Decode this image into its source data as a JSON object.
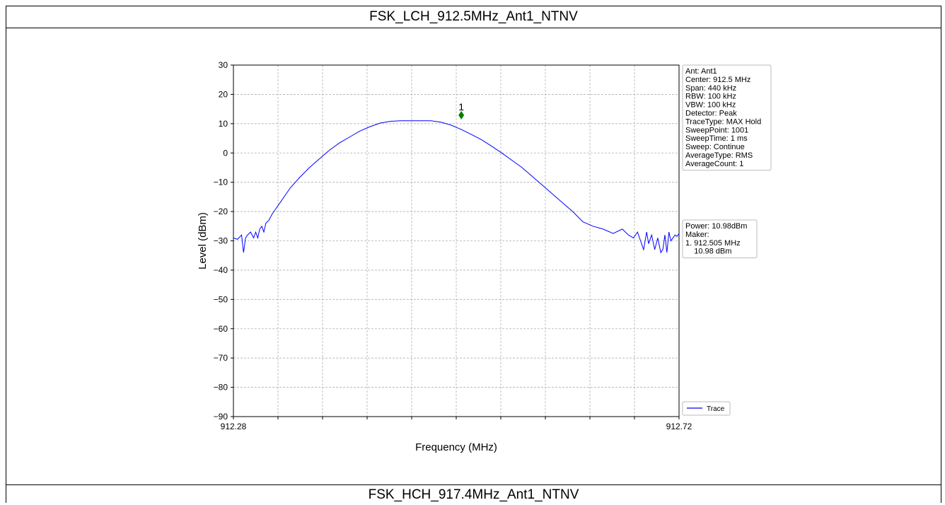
{
  "header": {
    "title_top": "FSK_LCH_912.5MHz_Ant1_NTNV",
    "title_bottom": "FSK_HCH_917.4MHz_Ant1_NTNV"
  },
  "chart_data": {
    "type": "line",
    "xlabel": "Frequency (MHz)",
    "ylabel": "Level (dBm)",
    "xlim": [
      912.28,
      912.72
    ],
    "ylim": [
      -90,
      30
    ],
    "x_tick_labels": [
      "912.28",
      "912.72"
    ],
    "x_minor_ticks": [
      912.28,
      912.324,
      912.368,
      912.412,
      912.456,
      912.5,
      912.544,
      912.588,
      912.632,
      912.676,
      912.72
    ],
    "y_ticks": [
      30,
      20,
      10,
      0,
      -10,
      -20,
      -30,
      -40,
      -50,
      -60,
      -70,
      -80,
      -90
    ],
    "y_tick_labels": [
      "30",
      "20",
      "10",
      "0",
      "−10",
      "−20",
      "−30",
      "−40",
      "−50",
      "−60",
      "−70",
      "−80",
      "−90"
    ],
    "grid": true,
    "legend_position": "bottom-right-outside",
    "series": [
      {
        "name": "Trace",
        "color": "#0000ff",
        "x": [
          912.28,
          912.284,
          912.288,
          912.29,
          912.292,
          912.294,
          912.297,
          912.3,
          912.302,
          912.304,
          912.306,
          912.308,
          912.31,
          912.312,
          912.315,
          912.318,
          912.322,
          912.326,
          912.33,
          912.336,
          912.345,
          912.355,
          912.365,
          912.375,
          912.385,
          912.395,
          912.405,
          912.415,
          912.425,
          912.435,
          912.445,
          912.455,
          912.465,
          912.475,
          912.485,
          912.495,
          912.505,
          912.515,
          912.525,
          912.535,
          912.545,
          912.555,
          912.565,
          912.575,
          912.585,
          912.595,
          912.605,
          912.615,
          912.625,
          912.635,
          912.645,
          912.655,
          912.664,
          912.67,
          912.675,
          912.679,
          912.682,
          912.685,
          912.688,
          912.69,
          912.693,
          912.696,
          912.699,
          912.702,
          912.704,
          912.706,
          912.708,
          912.71,
          912.712,
          912.714,
          912.716,
          912.718,
          912.72
        ],
        "y": [
          -29,
          -29.5,
          -28,
          -34,
          -29,
          -28,
          -27,
          -29,
          -27,
          -29,
          -26,
          -25,
          -27,
          -24,
          -23,
          -21,
          -19,
          -17,
          -15,
          -12,
          -8.5,
          -5,
          -2,
          1,
          3.5,
          5.5,
          7.5,
          9,
          10.2,
          10.8,
          11,
          11,
          11,
          11,
          10.5,
          9.5,
          8,
          6.3,
          4.5,
          2.3,
          0,
          -2.5,
          -5,
          -8,
          -11,
          -14,
          -17,
          -20,
          -23.5,
          -25,
          -26,
          -27.5,
          -26,
          -28,
          -29,
          -27,
          -30,
          -33,
          -27,
          -31,
          -28,
          -33,
          -29,
          -34,
          -33,
          -28,
          -34,
          -27,
          -30,
          -29,
          -28,
          -28.5,
          -27.5
        ]
      }
    ],
    "marker": {
      "label": "1",
      "x": 912.505,
      "y": 12.9,
      "color": "#008000"
    }
  },
  "info_box": {
    "lines": [
      "Ant: Ant1",
      "Center: 912.5 MHz",
      "Span: 440 kHz",
      "RBW: 100 kHz",
      "VBW: 100 kHz",
      "Detector: Peak",
      "TraceType: MAX Hold",
      "SweepPoint: 1001",
      "SweepTime: 1 ms",
      "Sweep: Continue",
      "AverageType: RMS",
      "AverageCount: 1"
    ]
  },
  "power_box": {
    "lines": [
      "Power: 10.98dBm",
      "Maker:",
      "1. 912.505 MHz",
      "    10.98 dBm"
    ]
  },
  "legend": {
    "label": "Trace",
    "color": "#0000ff"
  }
}
